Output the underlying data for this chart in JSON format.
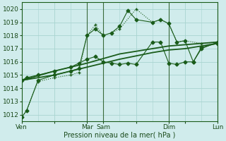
{
  "bg_color": "#d0ecec",
  "grid_color": "#a8d4d0",
  "line_color": "#1a5c1a",
  "xlabel": "Pression niveau de la mer( hPa )",
  "ylim": [
    1011.5,
    1020.5
  ],
  "yticks": [
    1012,
    1013,
    1014,
    1015,
    1016,
    1017,
    1018,
    1019,
    1020
  ],
  "xlim": [
    0,
    12
  ],
  "xtick_labels": [
    "Ven",
    "",
    "Mar",
    "Sam",
    "",
    "Dim",
    "",
    "Lun"
  ],
  "xtick_positions": [
    0,
    2,
    4,
    5,
    7,
    9,
    10,
    12
  ],
  "vlines": [
    4.0,
    5.0,
    9.0,
    12.0
  ],
  "series": [
    {
      "x": [
        0,
        0.3,
        1.0,
        2.0,
        3.0,
        3.5,
        4.0,
        4.5,
        5.0,
        5.5,
        6.0,
        7.0,
        8.0,
        8.5,
        9.0,
        9.5,
        10.0,
        11.0,
        12.0
      ],
      "y": [
        1011.8,
        1012.3,
        1014.5,
        1014.8,
        1015.0,
        1015.2,
        1018.0,
        1018.8,
        1018.0,
        1018.2,
        1018.5,
        1020.0,
        1019.0,
        1019.2,
        1018.9,
        1017.5,
        1017.6,
        1017.4,
        1017.5
      ],
      "marker": "+",
      "markersize": 3.5,
      "linewidth": 0.8,
      "linestyle": "dotted"
    },
    {
      "x": [
        0,
        0.3,
        1.0,
        2.0,
        3.0,
        3.5,
        4.0,
        4.5,
        5.0,
        5.5,
        6.0,
        6.5,
        7.0,
        8.0,
        8.5,
        9.0,
        9.5,
        10.0,
        10.5,
        11.0,
        12.0
      ],
      "y": [
        1011.8,
        1012.3,
        1014.6,
        1015.0,
        1015.3,
        1015.5,
        1018.0,
        1018.5,
        1018.0,
        1018.2,
        1018.7,
        1019.9,
        1019.2,
        1019.0,
        1019.2,
        1018.9,
        1017.5,
        1017.6,
        1016.0,
        1017.0,
        1017.5
      ],
      "marker": "D",
      "markersize": 2.5,
      "linewidth": 0.8,
      "linestyle": "solid"
    },
    {
      "x": [
        0,
        2.0,
        4.0,
        6.0,
        8.0,
        9.0,
        10.0,
        11.0,
        12.0
      ],
      "y": [
        1014.6,
        1015.3,
        1015.9,
        1016.6,
        1017.0,
        1017.2,
        1017.3,
        1017.4,
        1017.5
      ],
      "marker": null,
      "markersize": 0,
      "linewidth": 1.3,
      "linestyle": "solid"
    },
    {
      "x": [
        0,
        2.0,
        4.0,
        6.0,
        8.0,
        9.0,
        10.0,
        11.0,
        12.0
      ],
      "y": [
        1014.6,
        1015.0,
        1015.6,
        1016.2,
        1016.7,
        1016.9,
        1017.0,
        1017.2,
        1017.4
      ],
      "marker": null,
      "markersize": 0,
      "linewidth": 1.3,
      "linestyle": "solid"
    },
    {
      "x": [
        0,
        0.3,
        1.0,
        2.0,
        3.0,
        3.5,
        4.0,
        4.5,
        5.0,
        5.5,
        6.0,
        6.5,
        7.0,
        8.0,
        8.5,
        9.0,
        9.5,
        10.0,
        10.5,
        11.0,
        12.0
      ],
      "y": [
        1014.6,
        1014.8,
        1015.0,
        1015.3,
        1015.6,
        1015.9,
        1016.2,
        1016.4,
        1016.0,
        1015.9,
        1015.8,
        1015.9,
        1015.8,
        1017.5,
        1017.5,
        1015.9,
        1015.8,
        1016.0,
        1016.0,
        1017.1,
        1017.4
      ],
      "marker": "D",
      "markersize": 2.5,
      "linewidth": 0.8,
      "linestyle": "solid"
    }
  ]
}
